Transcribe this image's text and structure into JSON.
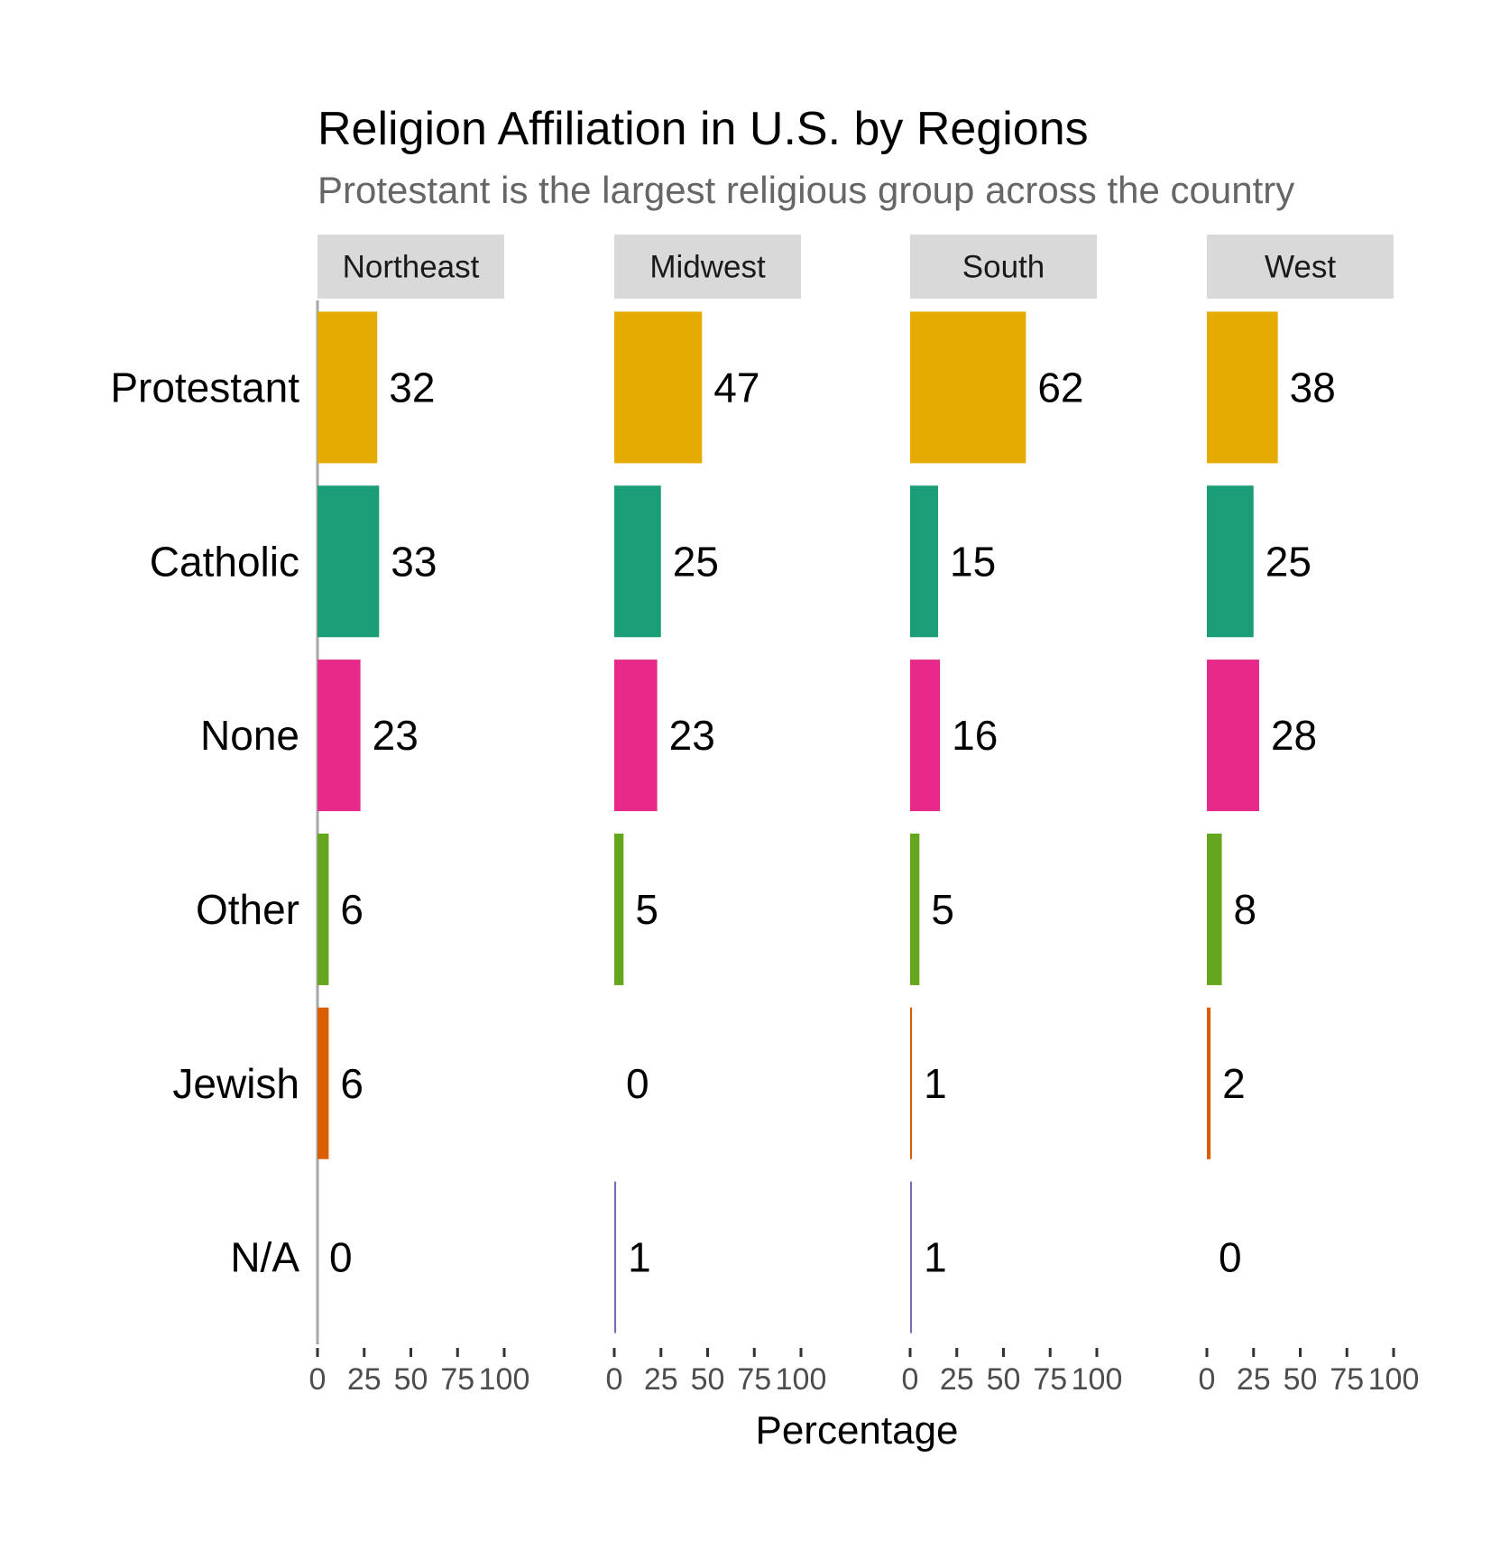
{
  "chart_data": {
    "type": "bar",
    "orientation": "horizontal",
    "title": "Religion Affiliation in U.S. by Regions",
    "subtitle": "Protestant is the largest religious group across the country",
    "xlabel": "Percentage",
    "ylabel": "",
    "xlim": [
      0,
      100
    ],
    "x_ticks": [
      "0",
      "25",
      "50",
      "75",
      "100"
    ],
    "grid": false,
    "categories": [
      "Protestant",
      "Catholic",
      "None",
      "Other",
      "Jewish",
      "N/A"
    ],
    "category_colors": [
      "#E6AB02",
      "#1B9E77",
      "#E7298A",
      "#66A61E",
      "#D95F02",
      "#7570B3"
    ],
    "panels": [
      {
        "name": "Northeast",
        "values": [
          32,
          33,
          23,
          6,
          6,
          0
        ]
      },
      {
        "name": "Midwest",
        "values": [
          47,
          25,
          23,
          5,
          0,
          1
        ]
      },
      {
        "name": "South",
        "values": [
          62,
          15,
          16,
          5,
          1,
          1
        ]
      },
      {
        "name": "West",
        "values": [
          38,
          25,
          28,
          8,
          2,
          0
        ]
      }
    ]
  }
}
